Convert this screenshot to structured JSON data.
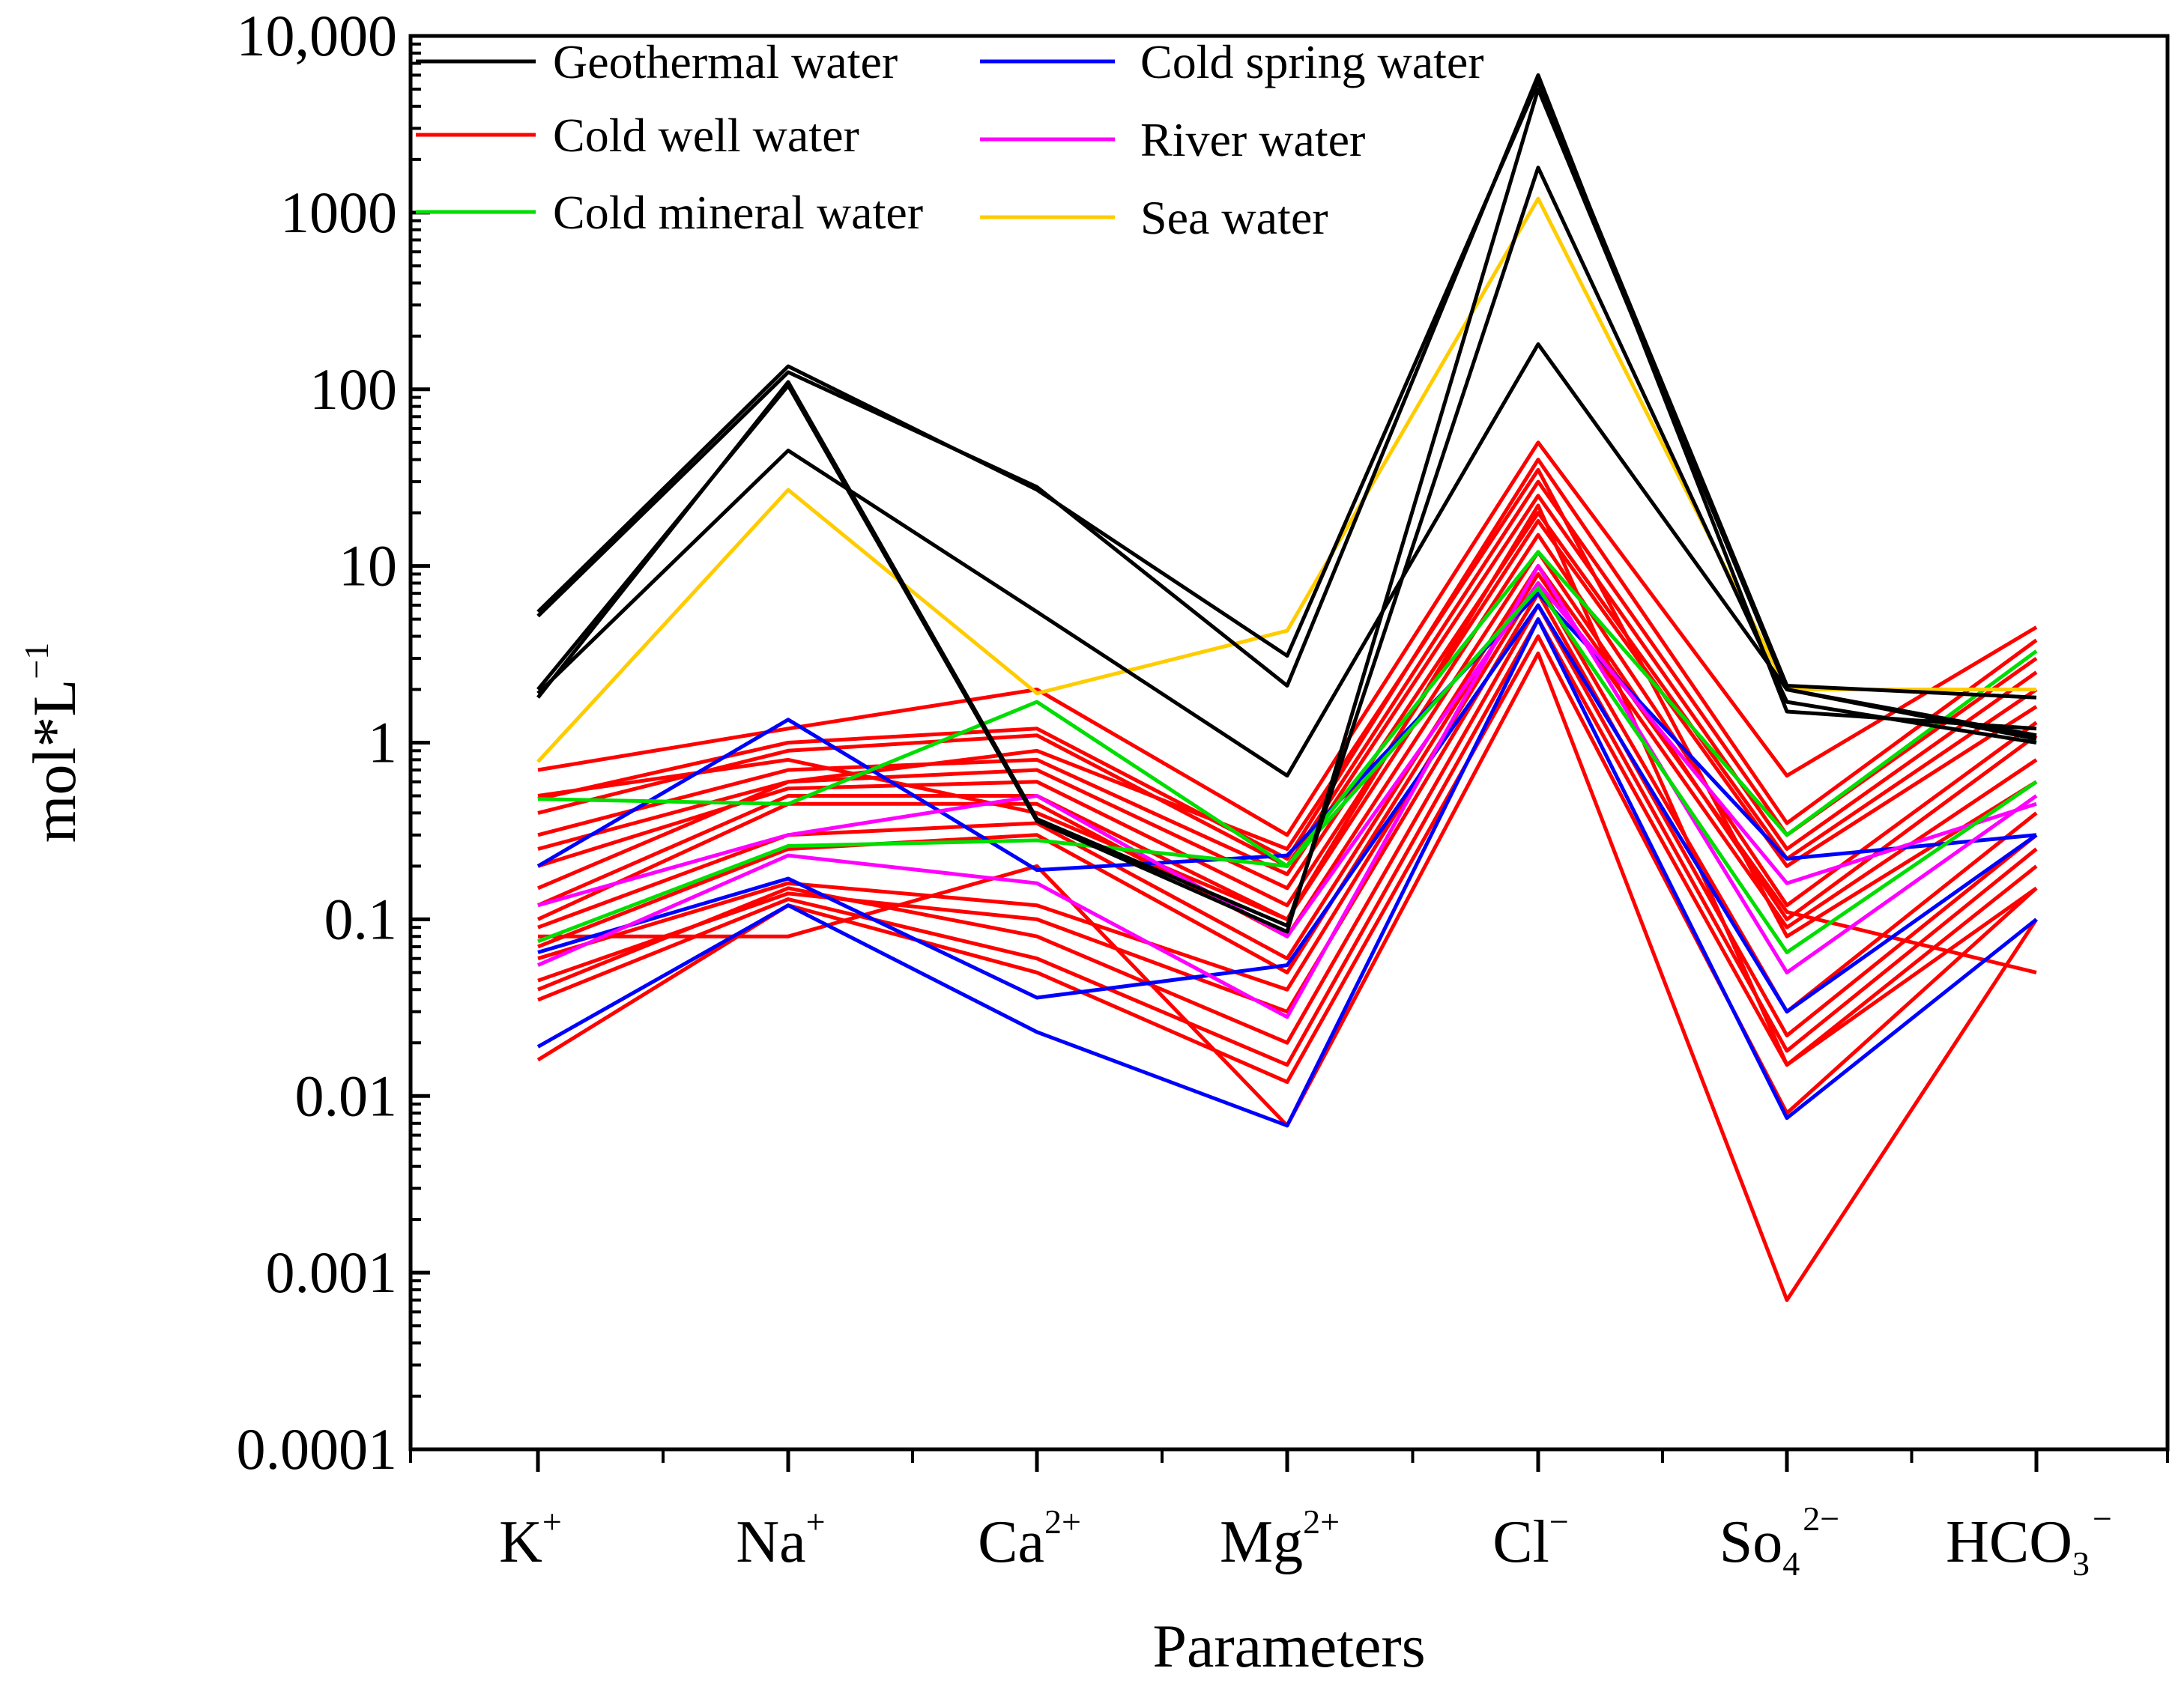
{
  "chart_data": {
    "type": "line",
    "scale": "log",
    "xlabel": "Parameters",
    "ylabel": "mol*L",
    "ylabel_sup": "−1",
    "ylim": [
      0.0001,
      10000
    ],
    "yticks": [
      {
        "value": 10000,
        "label": "10,000"
      },
      {
        "value": 1000,
        "label": "1000"
      },
      {
        "value": 100,
        "label": "100"
      },
      {
        "value": 10,
        "label": "10"
      },
      {
        "value": 1,
        "label": "1"
      },
      {
        "value": 0.1,
        "label": "0.1"
      },
      {
        "value": 0.01,
        "label": "0.01"
      },
      {
        "value": 0.001,
        "label": "0.001"
      },
      {
        "value": 0.0001,
        "label": "0.0001"
      }
    ],
    "categories": [
      {
        "base": "K",
        "sup": "+",
        "sub": ""
      },
      {
        "base": "Na",
        "sup": "+",
        "sub": ""
      },
      {
        "base": "Ca",
        "sup": "2+",
        "sub": ""
      },
      {
        "base": "Mg",
        "sup": "2+",
        "sub": ""
      },
      {
        "base": "Cl",
        "sup": "−",
        "sub": ""
      },
      {
        "base": "So",
        "sup": "2−",
        "sub": "4"
      },
      {
        "base": "HCO",
        "sup": "−",
        "sub": "3"
      }
    ],
    "legend": [
      {
        "name": "Geothermal water",
        "color": "#000000"
      },
      {
        "name": "Cold well water",
        "color": "#ff0000"
      },
      {
        "name": "Cold mineral water",
        "color": "#00dd00"
      },
      {
        "name": "Cold spring water",
        "color": "#0000ff"
      },
      {
        "name": "River water",
        "color": "#ff00ff"
      },
      {
        "name": "Sea water",
        "color": "#ffcc00"
      }
    ],
    "series": [
      {
        "group": "Cold well water",
        "color": "#ff0000",
        "values": [
          0.7,
          1.2,
          2.0,
          0.3,
          50,
          0.65,
          4.5
        ]
      },
      {
        "group": "Cold well water",
        "color": "#ff0000",
        "values": [
          0.48,
          1.0,
          1.2,
          0.22,
          40,
          0.35,
          3.8
        ]
      },
      {
        "group": "Cold well water",
        "color": "#ff0000",
        "values": [
          0.4,
          0.9,
          1.1,
          0.2,
          30,
          0.3,
          3.0
        ]
      },
      {
        "group": "Cold well water",
        "color": "#ff0000",
        "values": [
          0.3,
          0.7,
          0.8,
          0.18,
          25,
          0.25,
          2.5
        ]
      },
      {
        "group": "Cold well water",
        "color": "#ff0000",
        "values": [
          0.25,
          0.6,
          0.7,
          0.15,
          20,
          0.22,
          2.0
        ]
      },
      {
        "group": "Cold well water",
        "color": "#ff0000",
        "values": [
          0.2,
          0.55,
          0.6,
          0.12,
          18,
          0.2,
          1.6
        ]
      },
      {
        "group": "Cold well water",
        "color": "#ff0000",
        "values": [
          0.12,
          0.5,
          0.5,
          0.1,
          15,
          0.12,
          1.3
        ]
      },
      {
        "group": "Cold well water",
        "color": "#ff0000",
        "values": [
          0.1,
          0.45,
          0.45,
          0.08,
          12,
          0.1,
          1.1
        ]
      },
      {
        "group": "Cold well water",
        "color": "#ff0000",
        "values": [
          0.09,
          0.3,
          0.35,
          0.06,
          10,
          0.11,
          0.05
        ]
      },
      {
        "group": "Cold well water",
        "color": "#ff0000",
        "values": [
          0.07,
          0.25,
          0.3,
          0.05,
          9,
          0.09,
          0.8
        ]
      },
      {
        "group": "Cold well water",
        "color": "#ff0000",
        "values": [
          0.06,
          0.16,
          0.12,
          0.04,
          8,
          0.03,
          0.4
        ]
      },
      {
        "group": "Cold well water",
        "color": "#ff0000",
        "values": [
          0.045,
          0.14,
          0.1,
          0.03,
          7,
          0.022,
          0.3
        ]
      },
      {
        "group": "Cold well water",
        "color": "#ff0000",
        "values": [
          0.04,
          0.15,
          0.08,
          0.02,
          6,
          0.018,
          0.25
        ]
      },
      {
        "group": "Cold well water",
        "color": "#ff0000",
        "values": [
          0.035,
          0.13,
          0.06,
          0.015,
          5,
          0.015,
          0.2
        ]
      },
      {
        "group": "Cold well water",
        "color": "#ff0000",
        "values": [
          0.016,
          0.12,
          0.05,
          0.012,
          4,
          0.008,
          0.15
        ]
      },
      {
        "group": "Cold well water",
        "color": "#ff0000",
        "values": [
          0.08,
          0.08,
          0.2,
          0.0068,
          3.2,
          0.0007,
          0.1
        ]
      },
      {
        "group": "Cold well water",
        "color": "#ff0000",
        "values": [
          0.15,
          0.6,
          0.9,
          0.25,
          35,
          0.08,
          0.6
        ]
      },
      {
        "group": "Cold well water",
        "color": "#ff0000",
        "values": [
          0.5,
          0.8,
          0.4,
          0.1,
          22,
          0.015,
          0.15
        ]
      },
      {
        "group": "Cold mineral water",
        "color": "#00dd00",
        "values": [
          0.48,
          0.45,
          1.7,
          0.2,
          12,
          0.3,
          3.3
        ]
      },
      {
        "group": "Cold mineral water",
        "color": "#00dd00",
        "values": [
          0.075,
          0.26,
          0.28,
          0.2,
          7.5,
          0.065,
          0.6
        ]
      },
      {
        "group": "Cold spring water",
        "color": "#0000ff",
        "values": [
          0.2,
          1.35,
          0.19,
          0.23,
          7,
          0.22,
          0.3
        ]
      },
      {
        "group": "Cold spring water",
        "color": "#0000ff",
        "values": [
          0.065,
          0.17,
          0.036,
          0.055,
          6,
          0.03,
          0.3
        ]
      },
      {
        "group": "Cold spring water",
        "color": "#0000ff",
        "values": [
          0.019,
          0.12,
          0.023,
          0.0068,
          5,
          0.0075,
          0.1
        ]
      },
      {
        "group": "River water",
        "color": "#ff00ff",
        "values": [
          0.055,
          0.23,
          0.16,
          0.028,
          10,
          0.05,
          0.5
        ]
      },
      {
        "group": "River water",
        "color": "#ff00ff",
        "values": [
          0.12,
          0.3,
          0.5,
          0.08,
          8,
          0.16,
          0.45
        ]
      },
      {
        "group": "Sea water",
        "color": "#ffcc00",
        "values": [
          0.78,
          27,
          1.9,
          4.3,
          1200,
          2.0,
          2.0
        ]
      },
      {
        "group": "Geothermal water",
        "color": "#000000",
        "values": [
          5.5,
          135,
          27,
          3.1,
          5500,
          2.1,
          1.8
        ]
      },
      {
        "group": "Geothermal water",
        "color": "#000000",
        "values": [
          5.2,
          125,
          28,
          2.1,
          6000,
          1.5,
          1.2
        ]
      },
      {
        "group": "Geothermal water",
        "color": "#000000",
        "values": [
          2.0,
          105,
          0.36,
          0.085,
          5000,
          2.0,
          1.1
        ]
      },
      {
        "group": "Geothermal water",
        "color": "#000000",
        "values": [
          1.8,
          110,
          0.37,
          0.092,
          1800,
          1.7,
          1.0
        ]
      },
      {
        "group": "Geothermal water",
        "color": "#000000",
        "values": [
          1.9,
          45,
          5.5,
          0.65,
          180,
          2.0,
          1.05
        ]
      }
    ]
  }
}
